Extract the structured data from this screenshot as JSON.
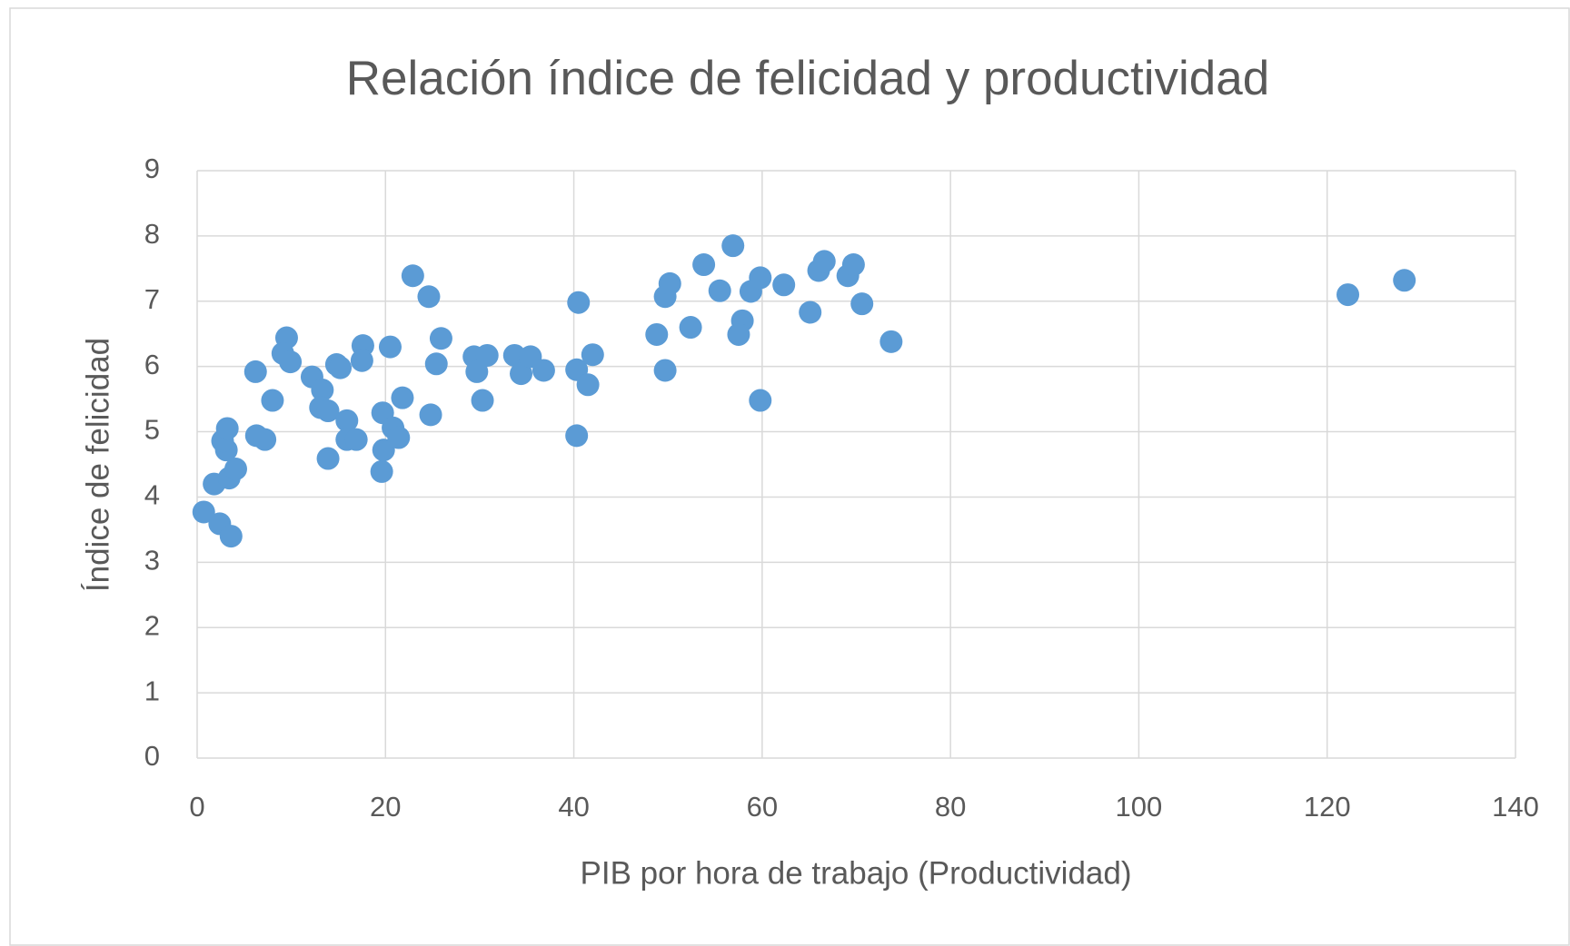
{
  "chart_data": {
    "type": "scatter",
    "title": "Relación índice de felicidad y productividad",
    "x_label": "PIB por hora de trabajo (Productividad)",
    "y_label": "Índice de felicidad",
    "color": "#5b9bd5",
    "grid": true,
    "xlim": [
      0,
      140
    ],
    "xticks": [
      0,
      20,
      40,
      60,
      80,
      100,
      120,
      140
    ],
    "ylim": [
      0,
      9
    ],
    "yticks": [
      0,
      1,
      2,
      3,
      4,
      5,
      6,
      7,
      8,
      9
    ],
    "x": [
      0.7,
      2.4,
      3.6,
      1.8,
      3.4,
      4.1,
      3.1,
      2.7,
      3.2,
      6.2,
      6.3,
      7.2,
      8.0,
      9.5,
      9.1,
      9.9,
      12.2,
      13.3,
      13.1,
      13.9,
      13.9,
      14.8,
      15.2,
      15.9,
      15.9,
      16.9,
      17.6,
      17.5,
      19.6,
      19.8,
      19.7,
      20.5,
      20.8,
      21.4,
      21.8,
      22.9,
      24.6,
      24.8,
      25.4,
      25.9,
      29.4,
      29.7,
      30.8,
      30.3,
      33.7,
      34.4,
      35.4,
      36.8,
      40.5,
      40.3,
      40.3,
      41.5,
      42.0,
      48.8,
      49.7,
      50.2,
      49.7,
      52.4,
      53.8,
      55.5,
      56.9,
      58.8,
      57.9,
      57.5,
      59.8,
      59.8,
      62.3,
      65.1,
      66.0,
      66.6,
      69.1,
      69.7,
      70.6,
      73.7,
      122.2,
      128.2
    ],
    "values": [
      3.77,
      3.59,
      3.4,
      4.2,
      4.29,
      4.43,
      4.72,
      4.86,
      5.05,
      5.92,
      4.94,
      4.88,
      5.48,
      6.44,
      6.2,
      6.07,
      5.84,
      5.64,
      5.37,
      5.32,
      4.59,
      6.03,
      5.98,
      5.17,
      4.88,
      4.88,
      6.32,
      6.09,
      4.39,
      4.72,
      5.29,
      6.3,
      5.06,
      4.91,
      5.52,
      7.39,
      7.07,
      5.26,
      6.04,
      6.43,
      6.15,
      5.92,
      6.17,
      5.48,
      6.17,
      5.89,
      6.15,
      5.94,
      6.98,
      5.95,
      4.94,
      5.72,
      6.18,
      6.49,
      7.07,
      7.27,
      5.94,
      6.6,
      7.56,
      7.16,
      7.85,
      7.15,
      6.7,
      6.49,
      7.36,
      5.48,
      7.25,
      6.83,
      7.47,
      7.61,
      7.39,
      7.56,
      6.96,
      6.38,
      7.1,
      7.32
    ]
  }
}
